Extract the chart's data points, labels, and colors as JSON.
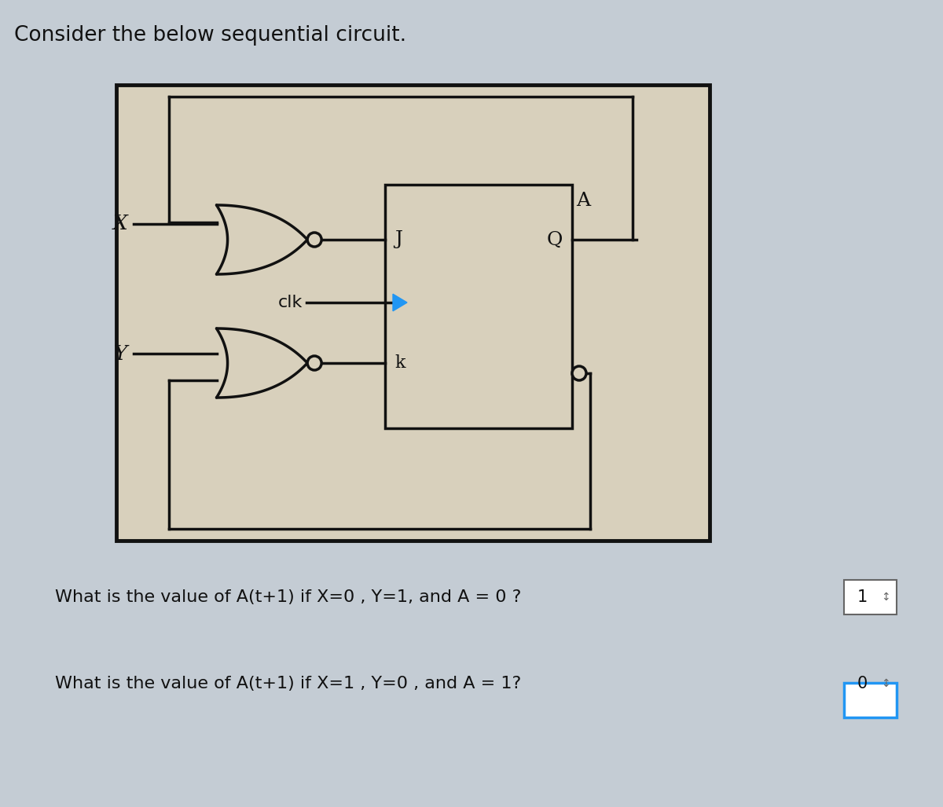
{
  "bg_color": "#c4ccd4",
  "circuit_bg": "#d8d0bc",
  "title": "Consider the below sequential circuit.",
  "title_fontsize": 19,
  "q1_text": "What is the value of A(t+1) if X=0 , Y=1, and A = 0 ?",
  "q2_text": "What is the value of A(t+1) if X=1 , Y=0 , and A = 1?",
  "a1_text": "1",
  "a2_text": "0",
  "q_fontsize": 16,
  "answer_fontsize": 15,
  "dark": "#111111",
  "clk_color": "#2196F3",
  "blue_border": "#2196F3"
}
